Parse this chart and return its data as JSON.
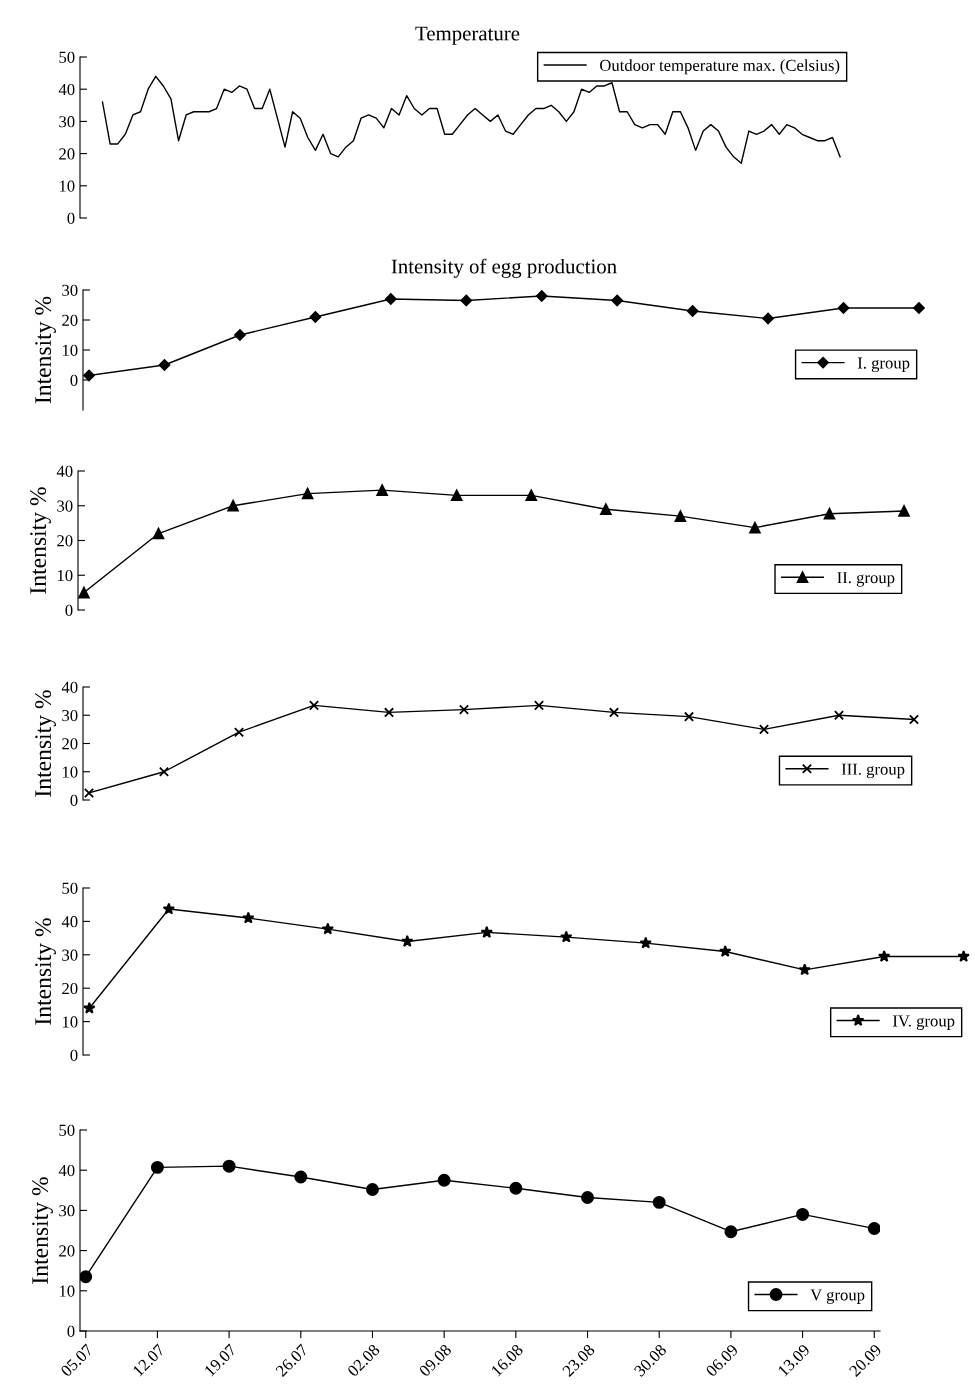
{
  "chart_data": [
    {
      "type": "line",
      "title": "Temperature",
      "categories": [
        null,
        null,
        null,
        null,
        null,
        null,
        null,
        null,
        null,
        null,
        null,
        null,
        null,
        null,
        null,
        null,
        null,
        null,
        null,
        null,
        null,
        null,
        null,
        null,
        null,
        null,
        null,
        null,
        null,
        null,
        null,
        null,
        null,
        null,
        null,
        null,
        null,
        null,
        null,
        null,
        null,
        null,
        null,
        null,
        null,
        null,
        null,
        null,
        null,
        null,
        null,
        null,
        null,
        null,
        null,
        null,
        null,
        null,
        null,
        null,
        null,
        null,
        null,
        null,
        null,
        null,
        null,
        null,
        null,
        null,
        null,
        null,
        null,
        null,
        null,
        null,
        null,
        null,
        null,
        null,
        null,
        null,
        null,
        null,
        null,
        null,
        null,
        null,
        null,
        null,
        null,
        null,
        null,
        null,
        null,
        null,
        null,
        null
      ],
      "series": [
        {
          "name": "Outdoor temperature max. (Celsius)",
          "color": "#000000",
          "values": [
            36,
            23,
            23,
            26,
            32,
            33,
            40,
            44,
            41,
            37,
            24,
            32,
            33,
            33,
            33,
            34,
            40,
            39,
            41,
            40,
            34,
            34,
            40,
            31,
            22,
            33,
            31,
            25,
            21,
            26,
            20,
            19,
            22,
            24,
            31,
            32,
            31,
            28,
            34,
            32,
            38,
            34,
            32,
            34,
            34,
            26,
            26,
            29,
            32,
            34,
            32,
            30,
            32,
            27,
            26,
            29,
            32,
            34,
            34,
            35,
            33,
            30,
            33,
            40,
            39,
            41,
            41,
            42,
            33,
            33,
            29,
            28,
            29,
            29,
            26,
            33,
            33,
            28,
            21,
            27,
            29,
            27,
            22,
            19,
            17,
            27,
            26,
            27,
            29,
            26,
            29,
            28,
            26,
            25,
            24,
            24,
            25,
            19
          ]
        }
      ],
      "ylim": [
        0,
        50
      ],
      "yticks": [
        0,
        10,
        20,
        30,
        40,
        50
      ],
      "tick_labels": "y",
      "legend": "top right",
      "grid": false,
      "marker": "none"
    },
    {
      "type": "line",
      "title": "Intensity of egg production",
      "ylabel": "Intensity %",
      "categories": [
        null,
        null,
        null,
        null,
        null,
        null,
        null,
        null,
        null,
        null,
        null,
        null
      ],
      "series": [
        {
          "name": "I. group",
          "color": "#000000",
          "marker": "diamond",
          "values": [
            1.5,
            5,
            15,
            21,
            27,
            26.5,
            28,
            26.5,
            23,
            20.5,
            24,
            24
          ]
        }
      ],
      "ylim": [
        -10,
        30
      ],
      "yticks": [
        0,
        10,
        20,
        30
      ],
      "tick_labels": "y",
      "legend": "right",
      "grid": false
    },
    {
      "type": "line",
      "ylabel": "Intensity %",
      "categories": [
        null,
        null,
        null,
        null,
        null,
        null,
        null,
        null,
        null,
        null,
        null,
        null
      ],
      "series": [
        {
          "name": "II. group",
          "color": "#000000",
          "marker": "triangle",
          "values": [
            5,
            22,
            30,
            33.5,
            34.5,
            33,
            33,
            29,
            27,
            23.7,
            27.7,
            28.5
          ]
        }
      ],
      "ylim": [
        0,
        40
      ],
      "yticks": [
        0,
        10,
        20,
        30,
        40
      ],
      "tick_labels": "y",
      "legend": "bottom right",
      "grid": false
    },
    {
      "type": "line",
      "ylabel": "Intensity %",
      "categories": [
        null,
        null,
        null,
        null,
        null,
        null,
        null,
        null,
        null,
        null,
        null,
        null
      ],
      "series": [
        {
          "name": "III. group",
          "color": "#000000",
          "marker": "cross",
          "values": [
            2.5,
            10,
            24,
            33.5,
            31,
            32,
            33.5,
            31,
            29.5,
            25,
            30,
            28.5
          ]
        }
      ],
      "ylim": [
        0,
        40
      ],
      "yticks": [
        0,
        10,
        20,
        30,
        40
      ],
      "tick_labels": "y",
      "legend": "bottom right",
      "grid": false
    },
    {
      "type": "line",
      "ylabel": "Intensity %",
      "categories": [
        null,
        null,
        null,
        null,
        null,
        null,
        null,
        null,
        null,
        null,
        null,
        null
      ],
      "series": [
        {
          "name": "IV. group",
          "color": "#000000",
          "marker": "star",
          "values": [
            14,
            43.7,
            41,
            37.7,
            34,
            36.7,
            35.3,
            33.5,
            31,
            25.5,
            29.5,
            29.5
          ]
        }
      ],
      "ylim": [
        0,
        50
      ],
      "yticks": [
        0,
        10,
        20,
        30,
        40,
        50
      ],
      "tick_labels": "y",
      "legend": "bottom right",
      "grid": false
    },
    {
      "type": "line",
      "ylabel": "Intensity %",
      "categories": [
        "05.07",
        "12.07",
        "19.07",
        "26.07",
        "02.08",
        "09.08",
        "16.08",
        "23.08",
        "30.08",
        "06.09",
        "13.09",
        "20.09"
      ],
      "series": [
        {
          "name": "V group",
          "color": "#000000",
          "marker": "circle",
          "values": [
            13.5,
            40.7,
            41,
            38.3,
            35.2,
            37.5,
            35.5,
            33.2,
            32,
            24.7,
            29,
            25.5
          ]
        }
      ],
      "ylim": [
        0,
        50
      ],
      "yticks": [
        0,
        10,
        20,
        30,
        40,
        50
      ],
      "legend": "bottom right",
      "grid": false
    }
  ]
}
